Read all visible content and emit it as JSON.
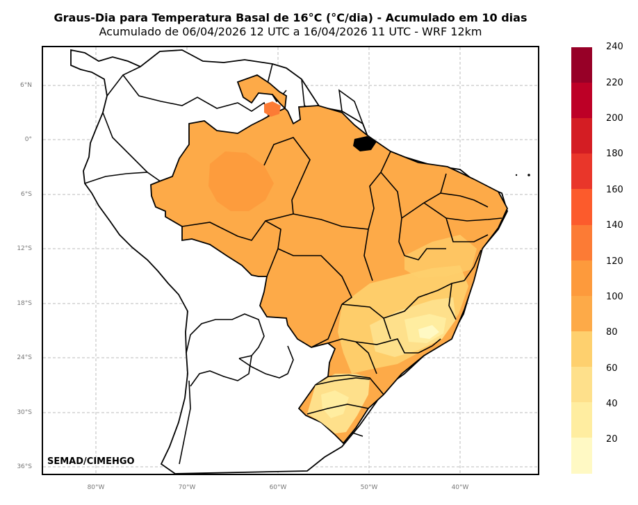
{
  "title": "Graus-Dia para Temperatura Basal de 16°C (°C/dia) - Acumulado em 10 dias",
  "subtitle": "Acumulado de 06/04/2026 12 UTC a 16/04/2026 11 UTC - WRF 12km",
  "credit": "SEMAD/CIMEHGO",
  "lat_labels": [
    "6°N",
    "0°",
    "6°S",
    "12°S",
    "18°S",
    "24°S",
    "30°S",
    "36°S"
  ],
  "lon_labels": [
    "80°W",
    "70°W",
    "60°W",
    "50°W",
    "40°W"
  ],
  "colorbar": {
    "ticks": [
      "240",
      "220",
      "200",
      "180",
      "160",
      "140",
      "120",
      "100",
      "80",
      "60",
      "40",
      "20"
    ],
    "colors": [
      "#fff9c4",
      "#ffeda0",
      "#fee08b",
      "#fed06e",
      "#fdaa48",
      "#fd9a3c",
      "#fc7b35",
      "#fc5b2c",
      "#e9362a",
      "#d41d23",
      "#bd0026",
      "#970027"
    ]
  },
  "map_colors": {
    "ocean": "#ffffff",
    "land_outside": "#ffffff",
    "field_main": "#fdaa48",
    "field_high": "#fd9a3c",
    "field_peak": "#fc7b35",
    "field_mid": "#fed06e",
    "field_low": "#fee08b",
    "field_lowest": "#ffeda0"
  }
}
